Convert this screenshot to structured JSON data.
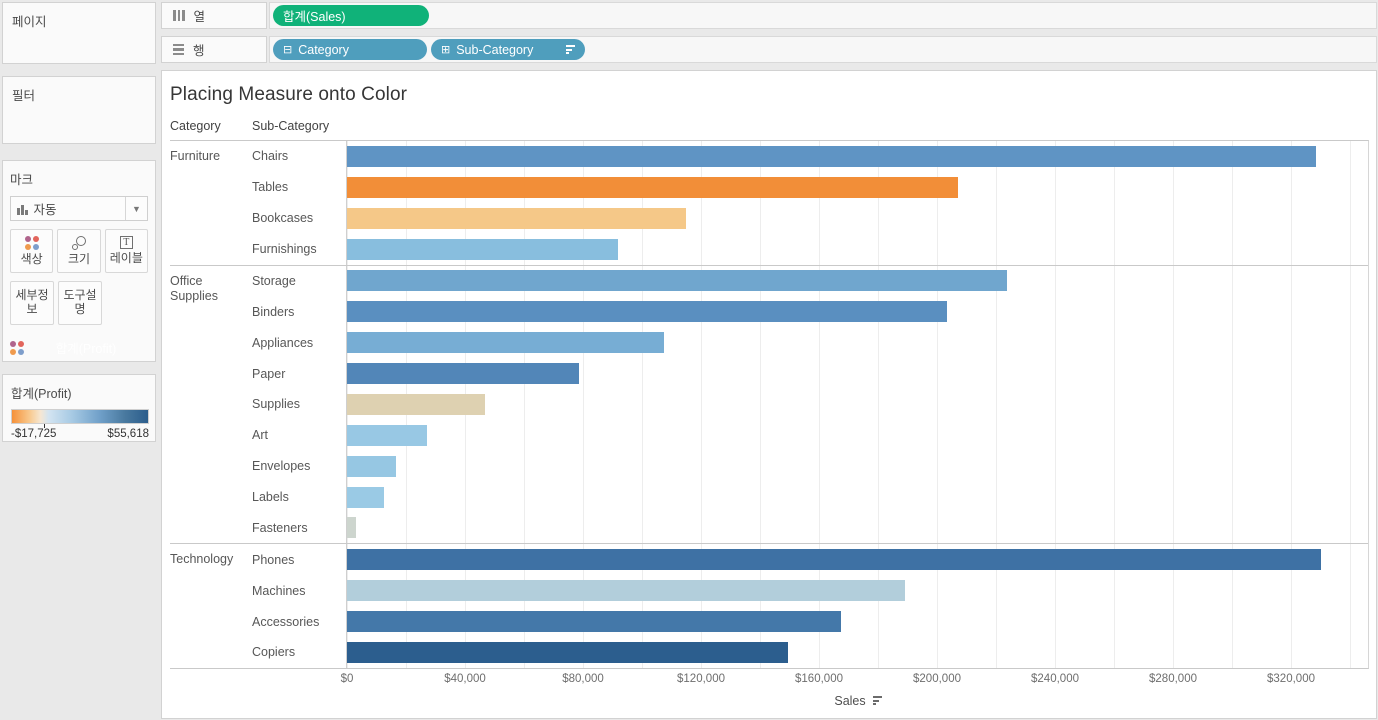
{
  "left_panel": {
    "pages_label": "페이지",
    "filters_label": "필터",
    "marks": {
      "title": "마크",
      "mark_type_selected": "자동",
      "buttons": {
        "color": "색상",
        "size": "크기",
        "label": "레이블",
        "detail": "세부정보",
        "tooltip": "도구설명"
      },
      "encoding_pill": "합계(Profit)",
      "dot_icon_colors": [
        "#b0648c",
        "#e2655c",
        "#ef9a4d",
        "#7e9ecb"
      ]
    },
    "legend": {
      "title": "합계(Profit)",
      "min_label": "-$17,725",
      "max_label": "$55,618",
      "gradient_css": "linear-gradient(90deg,#f59139 0%,#f8c98e 13%,#f6e7d2 21%,#d3e4f1 27%,#a7cae4 44%,#6f9fc8 65%,#49799f 83%,#2b5d8c 100%)"
    }
  },
  "shelves": {
    "columns": {
      "label": "열",
      "pills": [
        {
          "text": "합계(Sales)",
          "kind": "measure"
        }
      ]
    },
    "rows": {
      "label": "행",
      "pills": [
        {
          "text": "Category",
          "prefix": "⊟",
          "kind": "dimension",
          "sorted": false
        },
        {
          "text": "Sub-Category",
          "prefix": "⊞",
          "kind": "dimension",
          "sorted": true
        }
      ]
    },
    "pill_colors": {
      "measure": "#10b279",
      "dimension": "#4f9ebd"
    }
  },
  "chart_data": {
    "type": "bar",
    "orientation": "horizontal",
    "title": "Placing Measure onto Color",
    "column_headers": [
      "Category",
      "Sub-Category"
    ],
    "xlabel": "Sales",
    "x_ticks": [
      "$0",
      "$40,000",
      "$80,000",
      "$120,000",
      "$160,000",
      "$200,000",
      "$240,000",
      "$280,000",
      "$320,000"
    ],
    "x_tick_values": [
      0,
      40000,
      80000,
      120000,
      160000,
      200000,
      240000,
      280000,
      320000
    ],
    "xlim": [
      0,
      346000
    ],
    "grid": true,
    "color_encoding": {
      "measure": "합계(Profit)",
      "min_label": "-$17,725",
      "max_label": "$55,618",
      "palette": "orange-blue diverging"
    },
    "groups": [
      {
        "category": "Furniture",
        "rows": [
          {
            "sub_category": "Chairs",
            "sales": 328449,
            "color": "#5f94c4"
          },
          {
            "sub_category": "Tables",
            "sales": 206966,
            "color": "#f28e38"
          },
          {
            "sub_category": "Bookcases",
            "sales": 114880,
            "color": "#f5c888"
          },
          {
            "sub_category": "Furnishings",
            "sales": 91705,
            "color": "#88bede"
          }
        ]
      },
      {
        "category": "Office Supplies",
        "rows": [
          {
            "sub_category": "Storage",
            "sales": 223844,
            "color": "#70a6ce"
          },
          {
            "sub_category": "Binders",
            "sales": 203413,
            "color": "#5a8fc0"
          },
          {
            "sub_category": "Appliances",
            "sales": 107532,
            "color": "#77add4"
          },
          {
            "sub_category": "Paper",
            "sales": 78479,
            "color": "#5286b8"
          },
          {
            "sub_category": "Supplies",
            "sales": 46674,
            "color": "#ded1b1"
          },
          {
            "sub_category": "Art",
            "sales": 27119,
            "color": "#98c8e4"
          },
          {
            "sub_category": "Envelopes",
            "sales": 16476,
            "color": "#96c7e3"
          },
          {
            "sub_category": "Labels",
            "sales": 12486,
            "color": "#9acae5"
          },
          {
            "sub_category": "Fasteners",
            "sales": 3024,
            "color": "#cdd5ce"
          }
        ]
      },
      {
        "category": "Technology",
        "rows": [
          {
            "sub_category": "Phones",
            "sales": 330007,
            "color": "#3e71a4"
          },
          {
            "sub_category": "Machines",
            "sales": 189239,
            "color": "#b2cedb"
          },
          {
            "sub_category": "Accessories",
            "sales": 167380,
            "color": "#4478a9"
          },
          {
            "sub_category": "Copiers",
            "sales": 149528,
            "color": "#2c5e8e"
          }
        ]
      }
    ]
  }
}
